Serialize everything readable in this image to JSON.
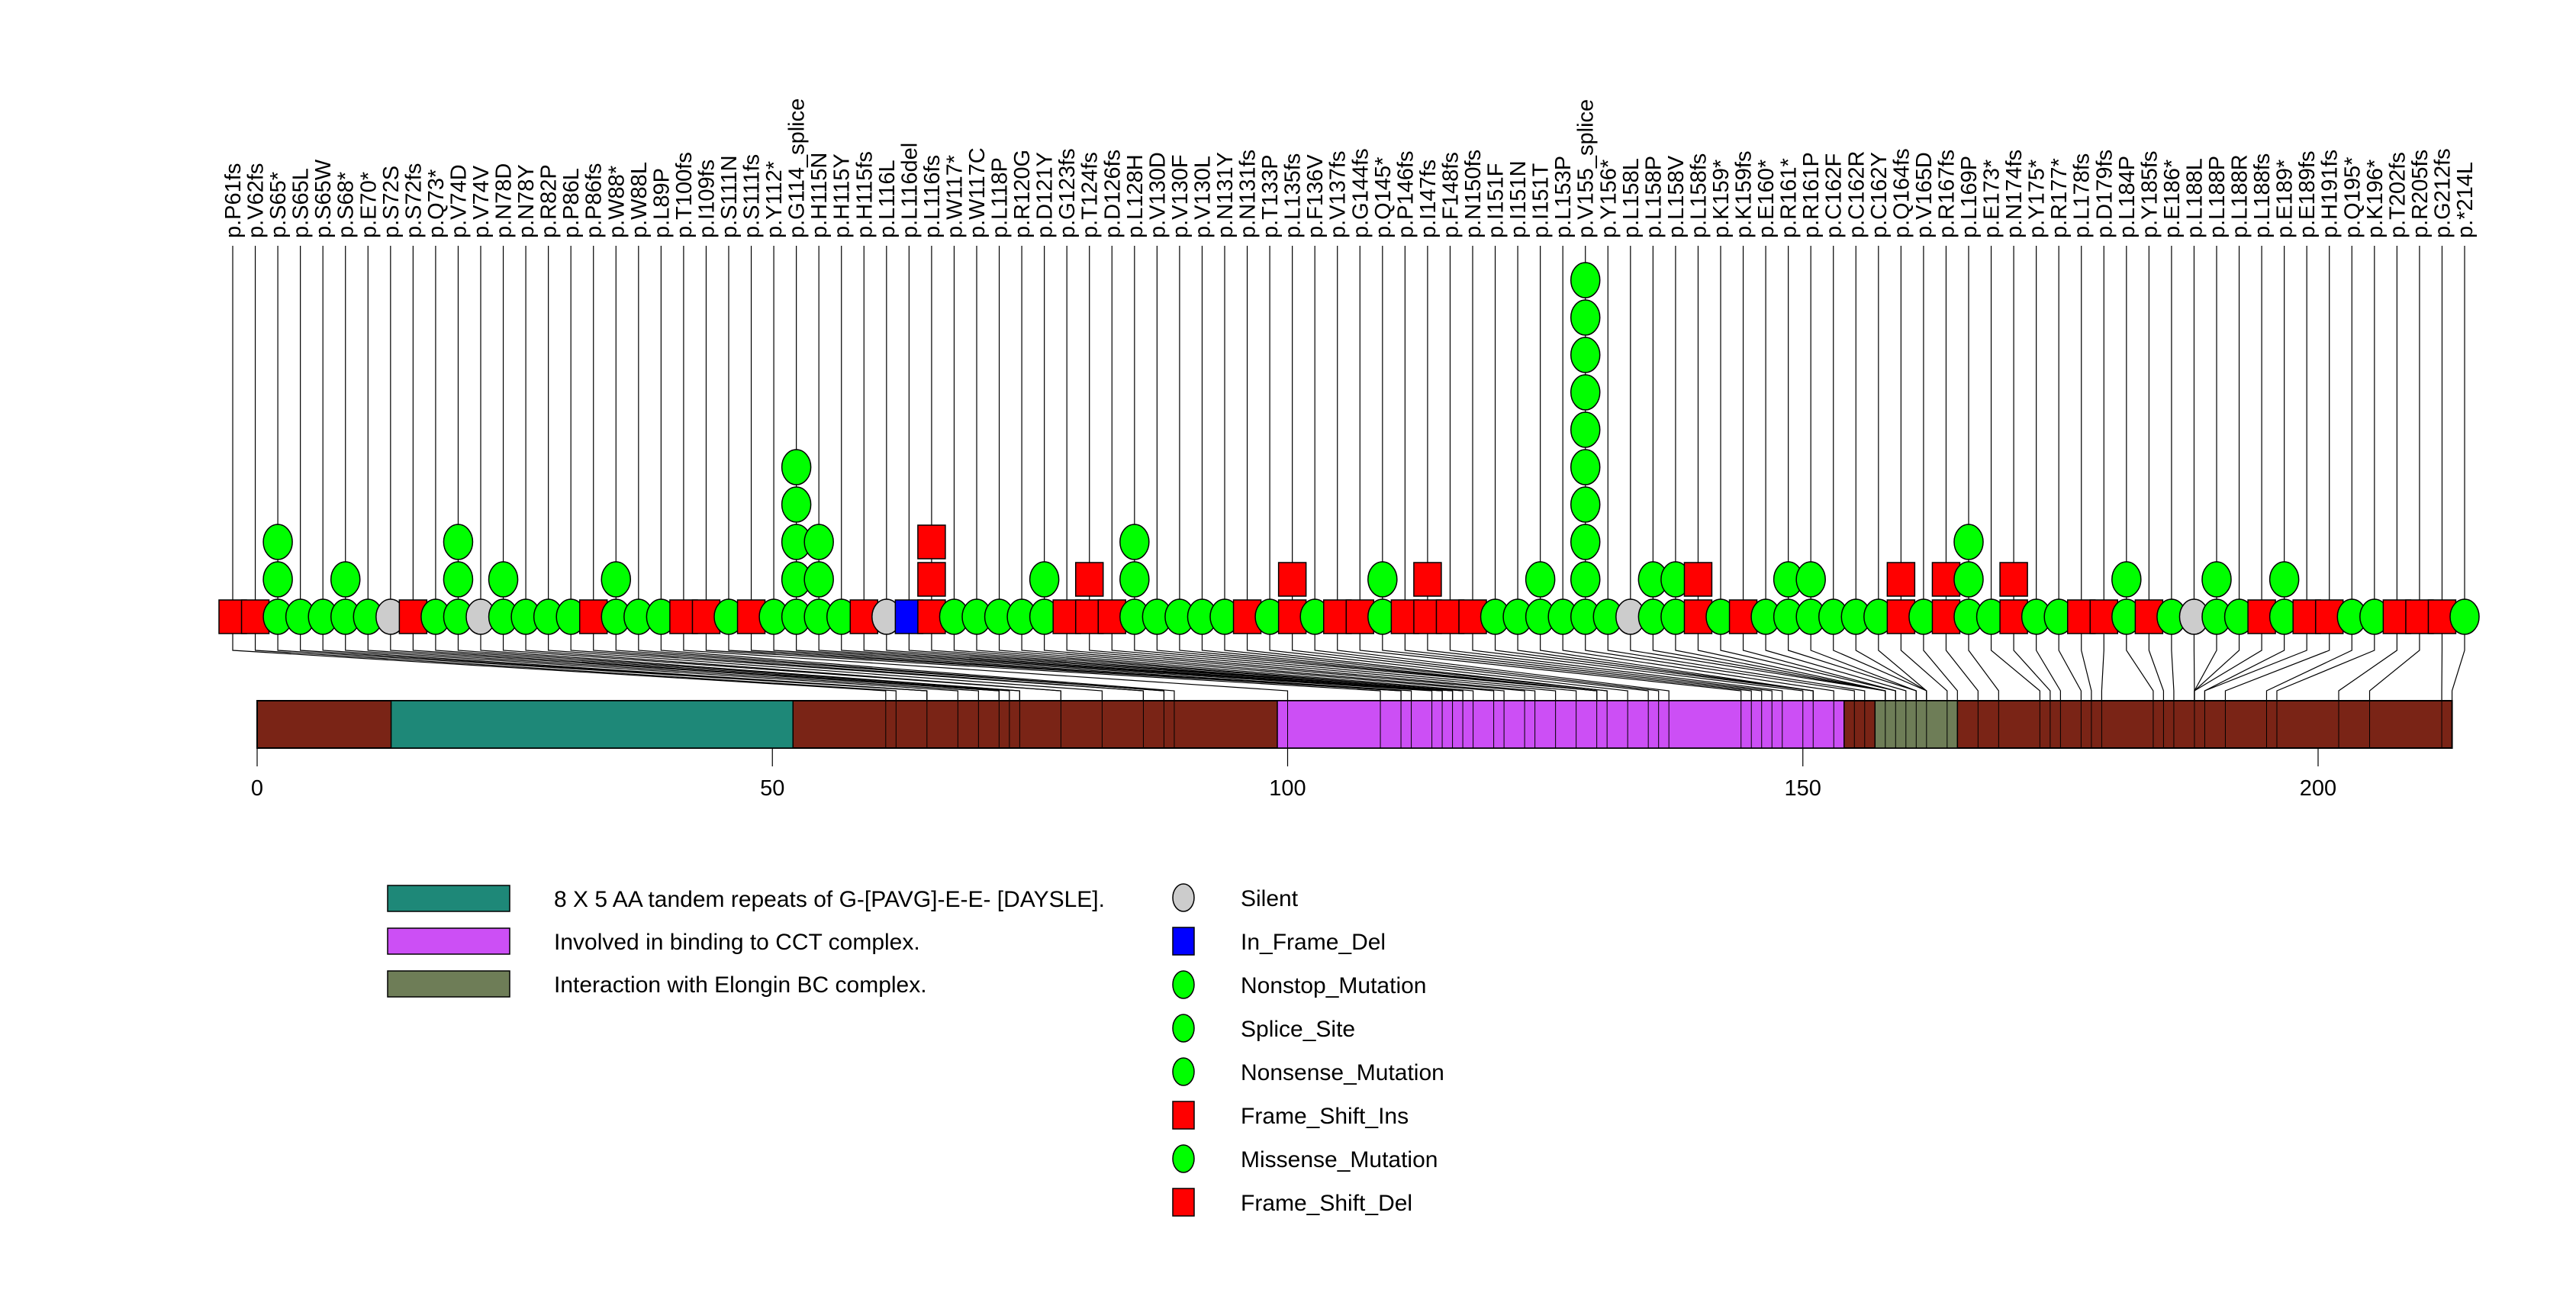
{
  "chart_data": {
    "type": "lollipop",
    "title": "",
    "xlabel": "",
    "ylabel": "",
    "protein_length": 213,
    "xlim": [
      0,
      213
    ],
    "x_ticks": [
      0,
      50,
      100,
      150,
      200
    ],
    "backbone_color": "#7a2416",
    "domains": [
      {
        "name": "8 X 5 AA tandem repeats of G-[PAVG]-E-E- [DAYSLE].",
        "start": 13,
        "end": 52,
        "color": "#1e8878"
      },
      {
        "name": "Involved in binding to CCT complex.",
        "start": 99,
        "end": 154,
        "color": "#cc4ff5"
      },
      {
        "name": "Interaction with Elongin BC complex.",
        "start": 157,
        "end": 165,
        "color": "#6e7d57"
      }
    ],
    "mutation_types": [
      {
        "name": "Silent",
        "shape": "circle",
        "color": "#cccccc"
      },
      {
        "name": "In_Frame_Del",
        "shape": "square",
        "color": "#0000ff"
      },
      {
        "name": "Nonstop_Mutation",
        "shape": "circle",
        "color": "#00ff00"
      },
      {
        "name": "Splice_Site",
        "shape": "circle",
        "color": "#00ff00"
      },
      {
        "name": "Nonsense_Mutation",
        "shape": "circle",
        "color": "#00ff00"
      },
      {
        "name": "Frame_Shift_Ins",
        "shape": "square",
        "color": "#ff0000"
      },
      {
        "name": "Missense_Mutation",
        "shape": "circle",
        "color": "#00ff00"
      },
      {
        "name": "Frame_Shift_Del",
        "shape": "square",
        "color": "#ff0000"
      }
    ],
    "mutations": [
      {
        "label": "p.P61fs",
        "pos": 61,
        "type": "Frame_Shift_Del",
        "count": 1
      },
      {
        "label": "p.V62fs",
        "pos": 62,
        "type": "Frame_Shift_Del",
        "count": 1
      },
      {
        "label": "p.S65*",
        "pos": 65,
        "type": "Nonsense_Mutation",
        "count": 3
      },
      {
        "label": "p.S65L",
        "pos": 65,
        "type": "Missense_Mutation",
        "count": 1
      },
      {
        "label": "p.S65W",
        "pos": 65,
        "type": "Missense_Mutation",
        "count": 1
      },
      {
        "label": "p.S68*",
        "pos": 68,
        "type": "Nonsense_Mutation",
        "count": 2
      },
      {
        "label": "p.E70*",
        "pos": 70,
        "type": "Nonsense_Mutation",
        "count": 1
      },
      {
        "label": "p.S72S",
        "pos": 72,
        "type": "Silent",
        "count": 1
      },
      {
        "label": "p.S72fs",
        "pos": 72,
        "type": "Frame_Shift_Del",
        "count": 1
      },
      {
        "label": "p.Q73*",
        "pos": 73,
        "type": "Nonsense_Mutation",
        "count": 1
      },
      {
        "label": "p.V74D",
        "pos": 74,
        "type": "Missense_Mutation",
        "count": 3
      },
      {
        "label": "p.V74V",
        "pos": 74,
        "type": "Silent",
        "count": 1
      },
      {
        "label": "p.N78D",
        "pos": 78,
        "type": "Missense_Mutation",
        "count": 2
      },
      {
        "label": "p.N78Y",
        "pos": 78,
        "type": "Missense_Mutation",
        "count": 1
      },
      {
        "label": "p.R82P",
        "pos": 82,
        "type": "Missense_Mutation",
        "count": 1
      },
      {
        "label": "p.P86L",
        "pos": 86,
        "type": "Missense_Mutation",
        "count": 1
      },
      {
        "label": "p.P86fs",
        "pos": 86,
        "type": "Frame_Shift_Del",
        "count": 1
      },
      {
        "label": "p.W88*",
        "pos": 88,
        "type": "Nonsense_Mutation",
        "count": 2
      },
      {
        "label": "p.W88L",
        "pos": 88,
        "type": "Missense_Mutation",
        "count": 1
      },
      {
        "label": "p.L89P",
        "pos": 89,
        "type": "Missense_Mutation",
        "count": 1
      },
      {
        "label": "p.T100fs",
        "pos": 100,
        "type": "Frame_Shift_Del",
        "count": 1
      },
      {
        "label": "p.I109fs",
        "pos": 109,
        "type": "Frame_Shift_Del",
        "count": 1
      },
      {
        "label": "p.S111N",
        "pos": 111,
        "type": "Missense_Mutation",
        "count": 1
      },
      {
        "label": "p.S111fs",
        "pos": 111,
        "type": "Frame_Shift_Del",
        "count": 1
      },
      {
        "label": "p.Y112*",
        "pos": 112,
        "type": "Nonsense_Mutation",
        "count": 1
      },
      {
        "label": "p.G114_splice",
        "pos": 114,
        "type": "Splice_Site",
        "count": 5
      },
      {
        "label": "p.H115N",
        "pos": 115,
        "type": "Missense_Mutation",
        "count": 3
      },
      {
        "label": "p.H115Y",
        "pos": 115,
        "type": "Missense_Mutation",
        "count": 1
      },
      {
        "label": "p.H115fs",
        "pos": 115,
        "type": "Frame_Shift_Del",
        "count": 1
      },
      {
        "label": "p.L116L",
        "pos": 116,
        "type": "Silent",
        "count": 1
      },
      {
        "label": "p.L116del",
        "pos": 116,
        "type": "In_Frame_Del",
        "count": 1
      },
      {
        "label": "p.L116fs",
        "pos": 116,
        "type": "Frame_Shift_Ins",
        "count": 3
      },
      {
        "label": "p.W117*",
        "pos": 117,
        "type": "Nonsense_Mutation",
        "count": 1
      },
      {
        "label": "p.W117C",
        "pos": 117,
        "type": "Missense_Mutation",
        "count": 1
      },
      {
        "label": "p.L118P",
        "pos": 118,
        "type": "Missense_Mutation",
        "count": 1
      },
      {
        "label": "p.R120G",
        "pos": 120,
        "type": "Missense_Mutation",
        "count": 1
      },
      {
        "label": "p.D121Y",
        "pos": 121,
        "type": "Missense_Mutation",
        "count": 2
      },
      {
        "label": "p.G123fs",
        "pos": 123,
        "type": "Frame_Shift_Del",
        "count": 1
      },
      {
        "label": "p.T124fs",
        "pos": 124,
        "type": "Frame_Shift_Ins",
        "count": 2
      },
      {
        "label": "p.D126fs",
        "pos": 126,
        "type": "Frame_Shift_Del",
        "count": 1
      },
      {
        "label": "p.L128H",
        "pos": 128,
        "type": "Missense_Mutation",
        "count": 3
      },
      {
        "label": "p.V130D",
        "pos": 130,
        "type": "Missense_Mutation",
        "count": 1
      },
      {
        "label": "p.V130F",
        "pos": 130,
        "type": "Missense_Mutation",
        "count": 1
      },
      {
        "label": "p.V130L",
        "pos": 130,
        "type": "Missense_Mutation",
        "count": 1
      },
      {
        "label": "p.N131Y",
        "pos": 131,
        "type": "Missense_Mutation",
        "count": 1
      },
      {
        "label": "p.N131fs",
        "pos": 131,
        "type": "Frame_Shift_Del",
        "count": 1
      },
      {
        "label": "p.T133P",
        "pos": 133,
        "type": "Missense_Mutation",
        "count": 1
      },
      {
        "label": "p.L135fs",
        "pos": 135,
        "type": "Frame_Shift_Ins",
        "count": 2
      },
      {
        "label": "p.F136V",
        "pos": 136,
        "type": "Missense_Mutation",
        "count": 1
      },
      {
        "label": "p.V137fs",
        "pos": 137,
        "type": "Frame_Shift_Del",
        "count": 1
      },
      {
        "label": "p.G144fs",
        "pos": 144,
        "type": "Frame_Shift_Del",
        "count": 1
      },
      {
        "label": "p.Q145*",
        "pos": 145,
        "type": "Nonsense_Mutation",
        "count": 2
      },
      {
        "label": "p.P146fs",
        "pos": 146,
        "type": "Frame_Shift_Del",
        "count": 1
      },
      {
        "label": "p.I147fs",
        "pos": 147,
        "type": "Frame_Shift_Ins",
        "count": 2
      },
      {
        "label": "p.F148fs",
        "pos": 148,
        "type": "Frame_Shift_Del",
        "count": 1
      },
      {
        "label": "p.N150fs",
        "pos": 150,
        "type": "Frame_Shift_Del",
        "count": 1
      },
      {
        "label": "p.I151F",
        "pos": 151,
        "type": "Missense_Mutation",
        "count": 1
      },
      {
        "label": "p.I151N",
        "pos": 151,
        "type": "Missense_Mutation",
        "count": 1
      },
      {
        "label": "p.I151T",
        "pos": 151,
        "type": "Missense_Mutation",
        "count": 2
      },
      {
        "label": "p.L153P",
        "pos": 153,
        "type": "Missense_Mutation",
        "count": 1
      },
      {
        "label": "p.V155_splice",
        "pos": 155,
        "type": "Splice_Site",
        "count": 10
      },
      {
        "label": "p.Y156*",
        "pos": 156,
        "type": "Nonsense_Mutation",
        "count": 1
      },
      {
        "label": "p.L158L",
        "pos": 158,
        "type": "Silent",
        "count": 1
      },
      {
        "label": "p.L158P",
        "pos": 158,
        "type": "Missense_Mutation",
        "count": 2
      },
      {
        "label": "p.L158V",
        "pos": 158,
        "type": "Missense_Mutation",
        "count": 2
      },
      {
        "label": "p.L158fs",
        "pos": 158,
        "type": "Frame_Shift_Ins",
        "count": 2
      },
      {
        "label": "p.K159*",
        "pos": 159,
        "type": "Nonsense_Mutation",
        "count": 1
      },
      {
        "label": "p.K159fs",
        "pos": 159,
        "type": "Frame_Shift_Del",
        "count": 1
      },
      {
        "label": "p.E160*",
        "pos": 160,
        "type": "Nonsense_Mutation",
        "count": 1
      },
      {
        "label": "p.R161*",
        "pos": 161,
        "type": "Nonsense_Mutation",
        "count": 2
      },
      {
        "label": "p.R161P",
        "pos": 161,
        "type": "Missense_Mutation",
        "count": 2
      },
      {
        "label": "p.C162F",
        "pos": 162,
        "type": "Missense_Mutation",
        "count": 1
      },
      {
        "label": "p.C162R",
        "pos": 162,
        "type": "Missense_Mutation",
        "count": 1
      },
      {
        "label": "p.C162Y",
        "pos": 162,
        "type": "Missense_Mutation",
        "count": 1
      },
      {
        "label": "p.Q164fs",
        "pos": 164,
        "type": "Frame_Shift_Ins",
        "count": 2
      },
      {
        "label": "p.V165D",
        "pos": 165,
        "type": "Missense_Mutation",
        "count": 1
      },
      {
        "label": "p.R167fs",
        "pos": 167,
        "type": "Frame_Shift_Ins",
        "count": 2
      },
      {
        "label": "p.L169P",
        "pos": 169,
        "type": "Missense_Mutation",
        "count": 3
      },
      {
        "label": "p.E173*",
        "pos": 173,
        "type": "Nonsense_Mutation",
        "count": 1
      },
      {
        "label": "p.N174fs",
        "pos": 174,
        "type": "Frame_Shift_Ins",
        "count": 2
      },
      {
        "label": "p.Y175*",
        "pos": 175,
        "type": "Nonsense_Mutation",
        "count": 1
      },
      {
        "label": "p.R177*",
        "pos": 177,
        "type": "Nonsense_Mutation",
        "count": 1
      },
      {
        "label": "p.L178fs",
        "pos": 178,
        "type": "Frame_Shift_Del",
        "count": 1
      },
      {
        "label": "p.D179fs",
        "pos": 179,
        "type": "Frame_Shift_Del",
        "count": 1
      },
      {
        "label": "p.L184P",
        "pos": 184,
        "type": "Missense_Mutation",
        "count": 2
      },
      {
        "label": "p.Y185fs",
        "pos": 185,
        "type": "Frame_Shift_Del",
        "count": 1
      },
      {
        "label": "p.E186*",
        "pos": 186,
        "type": "Nonsense_Mutation",
        "count": 1
      },
      {
        "label": "p.L188L",
        "pos": 188,
        "type": "Silent",
        "count": 1
      },
      {
        "label": "p.L188P",
        "pos": 188,
        "type": "Missense_Mutation",
        "count": 2
      },
      {
        "label": "p.L188R",
        "pos": 188,
        "type": "Missense_Mutation",
        "count": 1
      },
      {
        "label": "p.L188fs",
        "pos": 188,
        "type": "Frame_Shift_Del",
        "count": 1
      },
      {
        "label": "p.E189*",
        "pos": 189,
        "type": "Nonsense_Mutation",
        "count": 2
      },
      {
        "label": "p.E189fs",
        "pos": 189,
        "type": "Frame_Shift_Del",
        "count": 1
      },
      {
        "label": "p.H191fs",
        "pos": 191,
        "type": "Frame_Shift_Del",
        "count": 1
      },
      {
        "label": "p.Q195*",
        "pos": 195,
        "type": "Nonsense_Mutation",
        "count": 1
      },
      {
        "label": "p.K196*",
        "pos": 196,
        "type": "Nonsense_Mutation",
        "count": 1
      },
      {
        "label": "p.T202fs",
        "pos": 202,
        "type": "Frame_Shift_Del",
        "count": 1
      },
      {
        "label": "p.R205fs",
        "pos": 205,
        "type": "Frame_Shift_Del",
        "count": 1
      },
      {
        "label": "p.G212fs",
        "pos": 212,
        "type": "Frame_Shift_Del",
        "count": 1
      },
      {
        "label": "p.*214L",
        "pos": 213,
        "type": "Nonstop_Mutation",
        "count": 1
      }
    ],
    "domain_legend_placement": "bottom-left",
    "type_legend_placement": "bottom-center"
  }
}
